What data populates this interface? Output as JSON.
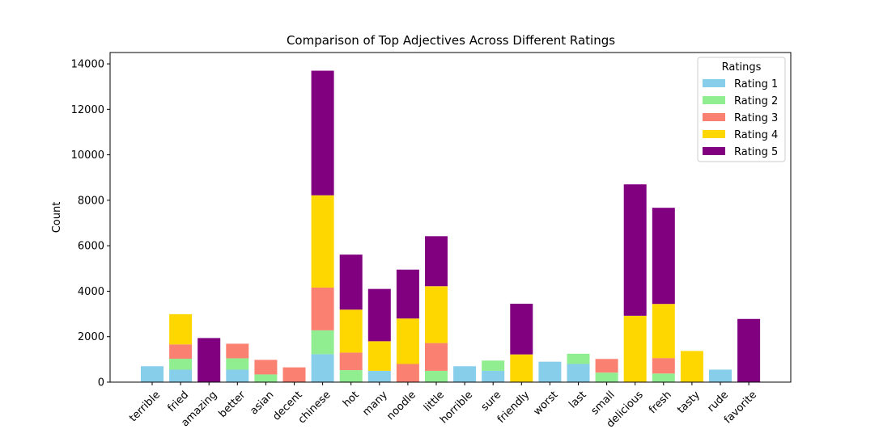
{
  "chart_data": {
    "type": "bar",
    "stacked": true,
    "title": "Comparison of Top Adjectives Across Different Ratings",
    "xlabel": "",
    "ylabel": "Count",
    "ylim": [
      0,
      14500
    ],
    "yticks": [
      0,
      2000,
      4000,
      6000,
      8000,
      10000,
      12000,
      14000
    ],
    "grid": false,
    "legend": {
      "title": "Ratings",
      "placement": "top-right"
    },
    "categories": [
      "terrible",
      "fried",
      "amazing",
      "better",
      "asian",
      "decent",
      "chinese",
      "hot",
      "many",
      "noodle",
      "little",
      "horrible",
      "sure",
      "friendly",
      "worst",
      "last",
      "small",
      "delicious",
      "fresh",
      "tasty",
      "rude",
      "favorite"
    ],
    "series": [
      {
        "name": "Rating 1",
        "color": "#87CEEB",
        "values": [
          700,
          550,
          0,
          550,
          0,
          0,
          1230,
          0,
          500,
          0,
          0,
          700,
          500,
          0,
          900,
          800,
          0,
          0,
          0,
          0,
          550,
          0
        ]
      },
      {
        "name": "Rating 2",
        "color": "#90EE90",
        "values": [
          0,
          480,
          0,
          500,
          340,
          0,
          1050,
          530,
          0,
          0,
          500,
          0,
          450,
          0,
          0,
          450,
          420,
          0,
          380,
          0,
          0,
          0
        ]
      },
      {
        "name": "Rating 3",
        "color": "#FA8072",
        "values": [
          0,
          630,
          0,
          640,
          640,
          650,
          1880,
          770,
          0,
          800,
          1220,
          0,
          0,
          0,
          0,
          0,
          600,
          0,
          680,
          0,
          0,
          0
        ]
      },
      {
        "name": "Rating 4",
        "color": "#FFD700",
        "values": [
          0,
          1330,
          0,
          0,
          0,
          0,
          4060,
          1890,
          1300,
          2000,
          2500,
          0,
          0,
          1220,
          0,
          0,
          0,
          2920,
          2380,
          1370,
          0,
          0
        ]
      },
      {
        "name": "Rating 5",
        "color": "#800080",
        "values": [
          0,
          0,
          1940,
          0,
          0,
          0,
          5480,
          2420,
          2300,
          2150,
          2200,
          0,
          0,
          2230,
          0,
          0,
          0,
          5780,
          4230,
          0,
          0,
          2780
        ]
      }
    ]
  }
}
